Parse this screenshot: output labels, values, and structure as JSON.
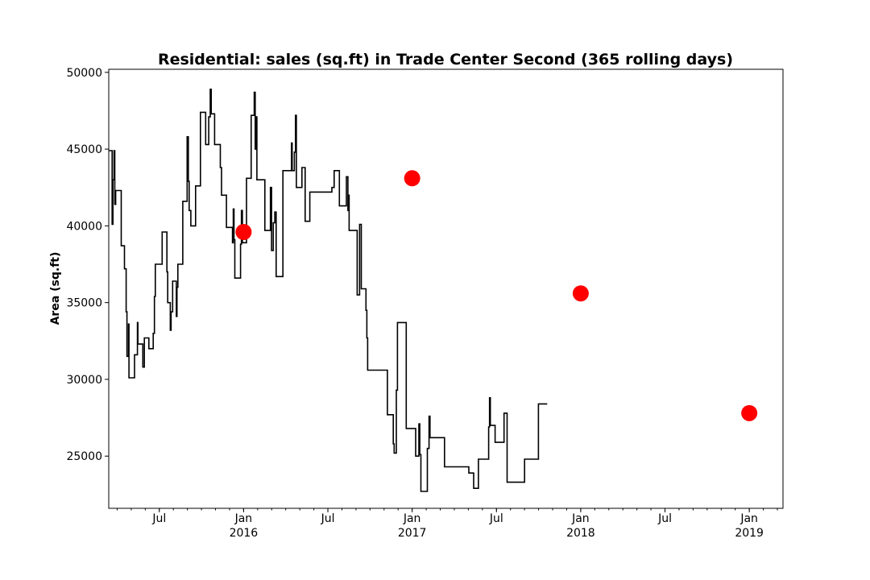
{
  "chart_data": {
    "type": "line",
    "title": "Residential: sales (sq.ft) in Trade Center Second (365 rolling days)",
    "xlabel": "",
    "ylabel": "Area (sq.ft)",
    "xlim": [
      2015.2,
      2019.2
    ],
    "ylim": [
      21600,
      50200
    ],
    "yticks": [
      {
        "value": 25000,
        "label": "25000"
      },
      {
        "value": 30000,
        "label": "30000"
      },
      {
        "value": 35000,
        "label": "35000"
      },
      {
        "value": 40000,
        "label": "40000"
      },
      {
        "value": 45000,
        "label": "45000"
      },
      {
        "value": 50000,
        "label": "50000"
      }
    ],
    "xticks": [
      {
        "value": 2015.5,
        "label": "Jul",
        "sublabel": ""
      },
      {
        "value": 2016.0,
        "label": "Jan",
        "sublabel": "2016"
      },
      {
        "value": 2016.5,
        "label": "Jul",
        "sublabel": ""
      },
      {
        "value": 2017.0,
        "label": "Jan",
        "sublabel": "2017"
      },
      {
        "value": 2017.5,
        "label": "Jul",
        "sublabel": ""
      },
      {
        "value": 2018.0,
        "label": "Jan",
        "sublabel": "2018"
      },
      {
        "value": 2018.5,
        "label": "Jul",
        "sublabel": ""
      },
      {
        "value": 2019.0,
        "label": "Jan",
        "sublabel": "2019"
      }
    ],
    "grid": false,
    "series": [
      {
        "name": "rolling_sales",
        "color": "#000000",
        "step": true,
        "points": [
          [
            2015.2,
            44900
          ],
          [
            2015.22,
            44900
          ],
          [
            2015.22,
            40100
          ],
          [
            2015.225,
            40100
          ],
          [
            2015.225,
            43000
          ],
          [
            2015.231,
            43000
          ],
          [
            2015.231,
            44900
          ],
          [
            2015.236,
            44900
          ],
          [
            2015.236,
            41400
          ],
          [
            2015.241,
            41400
          ],
          [
            2015.241,
            42300
          ],
          [
            2015.274,
            42300
          ],
          [
            2015.274,
            38700
          ],
          [
            2015.293,
            38700
          ],
          [
            2015.293,
            37200
          ],
          [
            2015.303,
            37200
          ],
          [
            2015.303,
            34400
          ],
          [
            2015.308,
            34400
          ],
          [
            2015.308,
            31500
          ],
          [
            2015.317,
            31500
          ],
          [
            2015.317,
            33600
          ],
          [
            2015.32,
            33600
          ],
          [
            2015.32,
            30100
          ],
          [
            2015.353,
            30100
          ],
          [
            2015.353,
            31600
          ],
          [
            2015.37,
            31600
          ],
          [
            2015.37,
            33700
          ],
          [
            2015.373,
            33700
          ],
          [
            2015.373,
            32300
          ],
          [
            2015.402,
            32300
          ],
          [
            2015.402,
            30800
          ],
          [
            2015.411,
            30800
          ],
          [
            2015.411,
            32700
          ],
          [
            2015.438,
            32700
          ],
          [
            2015.438,
            32000
          ],
          [
            2015.464,
            32000
          ],
          [
            2015.464,
            33000
          ],
          [
            2015.471,
            33000
          ],
          [
            2015.471,
            35400
          ],
          [
            2015.476,
            35400
          ],
          [
            2015.476,
            37500
          ],
          [
            2015.517,
            37500
          ],
          [
            2015.517,
            39600
          ],
          [
            2015.545,
            39600
          ],
          [
            2015.545,
            37000
          ],
          [
            2015.55,
            37000
          ],
          [
            2015.55,
            35000
          ],
          [
            2015.565,
            35000
          ],
          [
            2015.565,
            33200
          ],
          [
            2015.57,
            33200
          ],
          [
            2015.57,
            34400
          ],
          [
            2015.579,
            34400
          ],
          [
            2015.579,
            36400
          ],
          [
            2015.601,
            36400
          ],
          [
            2015.601,
            34100
          ],
          [
            2015.605,
            34100
          ],
          [
            2015.605,
            36000
          ],
          [
            2015.61,
            36000
          ],
          [
            2015.61,
            37500
          ],
          [
            2015.639,
            37500
          ],
          [
            2015.639,
            41600
          ],
          [
            2015.665,
            41600
          ],
          [
            2015.665,
            45800
          ],
          [
            2015.672,
            45800
          ],
          [
            2015.672,
            42900
          ],
          [
            2015.677,
            42900
          ],
          [
            2015.677,
            41000
          ],
          [
            2015.687,
            41000
          ],
          [
            2015.687,
            40000
          ],
          [
            2015.715,
            40000
          ],
          [
            2015.715,
            42600
          ],
          [
            2015.744,
            42600
          ],
          [
            2015.744,
            47400
          ],
          [
            2015.775,
            47400
          ],
          [
            2015.775,
            45300
          ],
          [
            2015.793,
            45300
          ],
          [
            2015.793,
            47100
          ],
          [
            2015.802,
            47100
          ],
          [
            2015.802,
            48900
          ],
          [
            2015.808,
            48900
          ],
          [
            2015.808,
            47300
          ],
          [
            2015.828,
            47300
          ],
          [
            2015.828,
            45300
          ],
          [
            2015.862,
            45300
          ],
          [
            2015.862,
            43800
          ],
          [
            2015.869,
            43800
          ],
          [
            2015.869,
            42000
          ],
          [
            2015.898,
            42000
          ],
          [
            2015.898,
            39900
          ],
          [
            2015.934,
            39900
          ],
          [
            2015.934,
            38900
          ],
          [
            2015.939,
            38900
          ],
          [
            2015.939,
            41100
          ],
          [
            2015.943,
            41100
          ],
          [
            2015.943,
            39100
          ],
          [
            2015.948,
            39100
          ],
          [
            2015.948,
            36600
          ],
          [
            2015.982,
            36600
          ],
          [
            2015.982,
            38800
          ],
          [
            2015.987,
            38800
          ],
          [
            2015.987,
            41000
          ],
          [
            2015.993,
            41000
          ],
          [
            2015.993,
            38900
          ],
          [
            2016.017,
            38900
          ],
          [
            2016.017,
            43100
          ],
          [
            2016.045,
            43100
          ],
          [
            2016.045,
            47200
          ],
          [
            2016.063,
            47200
          ],
          [
            2016.063,
            48700
          ],
          [
            2016.069,
            48700
          ],
          [
            2016.069,
            45000
          ],
          [
            2016.073,
            45000
          ],
          [
            2016.073,
            47100
          ],
          [
            2016.079,
            47100
          ],
          [
            2016.079,
            43000
          ],
          [
            2016.126,
            43000
          ],
          [
            2016.126,
            39700
          ],
          [
            2016.159,
            39700
          ],
          [
            2016.159,
            42500
          ],
          [
            2016.166,
            42500
          ],
          [
            2016.166,
            38400
          ],
          [
            2016.176,
            38400
          ],
          [
            2016.176,
            40200
          ],
          [
            2016.185,
            40200
          ],
          [
            2016.185,
            40900
          ],
          [
            2016.193,
            40900
          ],
          [
            2016.193,
            36700
          ],
          [
            2016.233,
            36700
          ],
          [
            2016.233,
            43600
          ],
          [
            2016.284,
            43600
          ],
          [
            2016.284,
            45400
          ],
          [
            2016.288,
            45400
          ],
          [
            2016.288,
            43600
          ],
          [
            2016.301,
            43600
          ],
          [
            2016.301,
            44800
          ],
          [
            2016.308,
            44800
          ],
          [
            2016.308,
            47200
          ],
          [
            2016.313,
            47200
          ],
          [
            2016.313,
            42500
          ],
          [
            2016.346,
            42500
          ],
          [
            2016.346,
            43800
          ],
          [
            2016.365,
            43800
          ],
          [
            2016.365,
            40300
          ],
          [
            2016.393,
            40300
          ],
          [
            2016.393,
            42200
          ],
          [
            2016.524,
            42200
          ],
          [
            2016.524,
            42500
          ],
          [
            2016.537,
            42500
          ],
          [
            2016.537,
            43600
          ],
          [
            2016.568,
            43600
          ],
          [
            2016.568,
            41300
          ],
          [
            2016.61,
            41300
          ],
          [
            2016.61,
            43200
          ],
          [
            2016.619,
            43200
          ],
          [
            2016.619,
            41000
          ],
          [
            2016.622,
            41000
          ],
          [
            2016.622,
            42000
          ],
          [
            2016.626,
            42000
          ],
          [
            2016.626,
            39700
          ],
          [
            2016.674,
            39700
          ],
          [
            2016.674,
            35500
          ],
          [
            2016.688,
            35500
          ],
          [
            2016.688,
            40100
          ],
          [
            2016.698,
            40100
          ],
          [
            2016.698,
            35900
          ],
          [
            2016.726,
            35900
          ],
          [
            2016.726,
            34500
          ],
          [
            2016.731,
            34500
          ],
          [
            2016.731,
            32700
          ],
          [
            2016.736,
            32700
          ],
          [
            2016.736,
            30600
          ],
          [
            2016.853,
            30600
          ],
          [
            2016.853,
            27700
          ],
          [
            2016.888,
            27700
          ],
          [
            2016.888,
            25800
          ],
          [
            2016.893,
            25800
          ],
          [
            2016.893,
            25200
          ],
          [
            2016.906,
            25200
          ],
          [
            2016.906,
            29300
          ],
          [
            2016.913,
            29300
          ],
          [
            2016.913,
            33700
          ],
          [
            2016.965,
            33700
          ],
          [
            2016.965,
            26800
          ],
          [
            2017.021,
            26800
          ],
          [
            2017.021,
            25000
          ],
          [
            2017.04,
            25000
          ],
          [
            2017.04,
            27100
          ],
          [
            2017.045,
            27100
          ],
          [
            2017.045,
            25100
          ],
          [
            2017.052,
            25100
          ],
          [
            2017.052,
            22700
          ],
          [
            2017.09,
            22700
          ],
          [
            2017.09,
            25500
          ],
          [
            2017.1,
            25500
          ],
          [
            2017.1,
            27600
          ],
          [
            2017.106,
            27600
          ],
          [
            2017.106,
            26200
          ],
          [
            2017.192,
            26200
          ],
          [
            2017.192,
            24300
          ],
          [
            2017.336,
            24300
          ],
          [
            2017.336,
            23900
          ],
          [
            2017.365,
            23900
          ],
          [
            2017.365,
            22900
          ],
          [
            2017.393,
            22900
          ],
          [
            2017.393,
            24800
          ],
          [
            2017.454,
            24800
          ],
          [
            2017.454,
            26900
          ],
          [
            2017.459,
            26900
          ],
          [
            2017.459,
            28800
          ],
          [
            2017.464,
            28800
          ],
          [
            2017.464,
            27000
          ],
          [
            2017.492,
            27000
          ],
          [
            2017.492,
            25900
          ],
          [
            2017.545,
            25900
          ],
          [
            2017.545,
            27800
          ],
          [
            2017.563,
            27800
          ],
          [
            2017.563,
            23300
          ],
          [
            2017.667,
            23300
          ],
          [
            2017.667,
            24800
          ],
          [
            2017.749,
            24800
          ],
          [
            2017.749,
            28400
          ],
          [
            2017.801,
            28400
          ]
        ]
      }
    ],
    "highlighted_points": [
      {
        "x": 2016.0,
        "y": 39600
      },
      {
        "x": 2017.0,
        "y": 43100
      },
      {
        "x": 2018.0,
        "y": 35600
      },
      {
        "x": 2019.0,
        "y": 27800
      }
    ],
    "highlight_color": "#ff0000"
  }
}
